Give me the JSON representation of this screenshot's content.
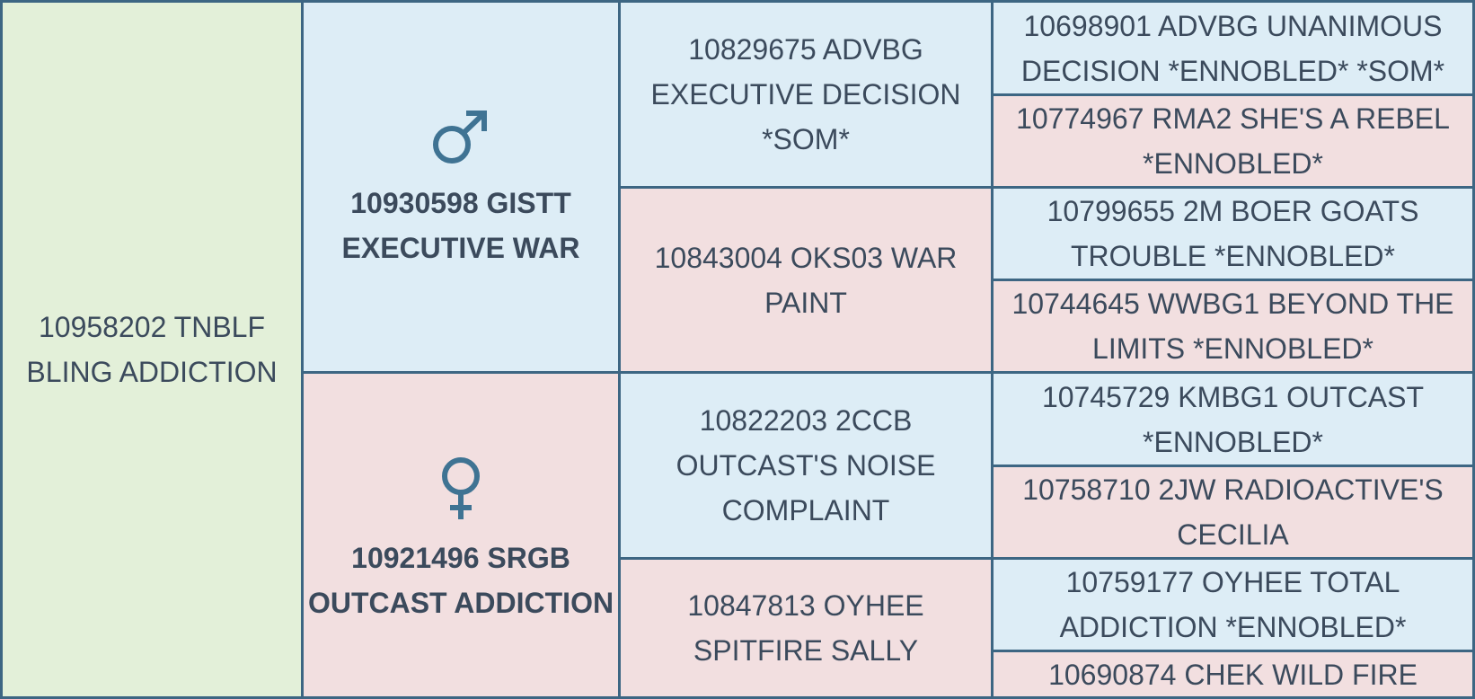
{
  "subject": {
    "label": "10958202 TNBLF BLING ADDICTION"
  },
  "sire": {
    "label": "10930598 GISTT EXECUTIVE WAR",
    "symbol": "male-symbol-icon"
  },
  "dam": {
    "label": "10921496 SRGB OUTCAST ADDICTION",
    "symbol": "female-symbol-icon"
  },
  "grandparents": [
    {
      "label": "10829675 ADVBG EXECUTIVE DECISION *SOM*",
      "sex": "male"
    },
    {
      "label": "10843004 OKS03 WAR PAINT",
      "sex": "female"
    },
    {
      "label": "10822203 2CCB OUTCAST'S NOISE COMPLAINT",
      "sex": "male"
    },
    {
      "label": "10847813 OYHEE SPITFIRE SALLY",
      "sex": "female"
    }
  ],
  "great_grandparents": [
    {
      "label": "10698901 ADVBG UNANIMOUS DECISION *ENNOBLED* *SOM*",
      "sex": "male"
    },
    {
      "label": "10774967 RMA2 SHE'S A REBEL *ENNOBLED*",
      "sex": "female"
    },
    {
      "label": "10799655 2M BOER GOATS TROUBLE *ENNOBLED*",
      "sex": "male"
    },
    {
      "label": "10744645 WWBG1 BEYOND THE LIMITS *ENNOBLED*",
      "sex": "female"
    },
    {
      "label": "10745729 KMBG1 OUTCAST *ENNOBLED*",
      "sex": "male"
    },
    {
      "label": "10758710 2JW RADIOACTIVE'S CECILIA",
      "sex": "female"
    },
    {
      "label": "10759177 OYHEE TOTAL ADDICTION *ENNOBLED*",
      "sex": "male"
    },
    {
      "label": "10690874 CHEK WILD FIRE",
      "sex": "female"
    }
  ],
  "colors": {
    "male": "#ddedf6",
    "female": "#f2dfe0",
    "subject": "#e3f0d9",
    "border": "#3d6683",
    "symbol": "#3f7393"
  }
}
